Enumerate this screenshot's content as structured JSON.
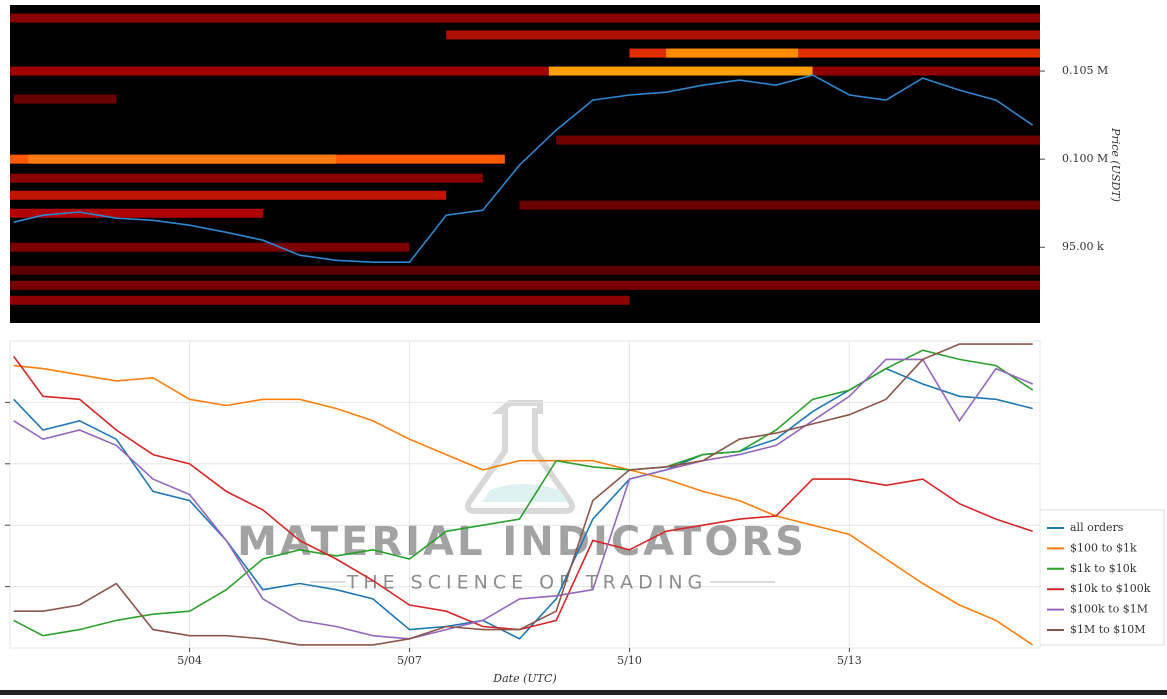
{
  "chart_data": [
    {
      "type": "heatmap",
      "ylabel": "Price (USDT)",
      "background": "#000000",
      "xlim": [
        1.55,
        15.6
      ],
      "ylim": [
        90700,
        108750
      ],
      "yticks": [
        {
          "value": 95000,
          "label": "95.00 k"
        },
        {
          "value": 100000,
          "label": "0.100 M"
        },
        {
          "value": 105000,
          "label": "0.105 M"
        }
      ],
      "x": [
        1.6,
        2,
        2.5,
        3,
        3.5,
        4,
        4.5,
        5,
        5.5,
        6,
        6.5,
        7,
        7.5,
        8,
        8.5,
        9,
        9.5,
        10,
        10.5,
        11,
        11.5,
        12,
        12.5,
        13,
        13.5,
        14,
        14.5,
        15,
        15.5
      ],
      "series": [
        {
          "color": "#2e86d0",
          "values": [
            96420,
            96820,
            97000,
            96650,
            96530,
            96250,
            95850,
            95400,
            94550,
            94260,
            94150,
            94150,
            96820,
            97100,
            99660,
            101650,
            103350,
            103640,
            103800,
            104200,
            104490,
            104200,
            104770,
            103640,
            103350,
            104600,
            103920,
            103350,
            101930
          ]
        }
      ],
      "bands": [
        {
          "price": 108010,
          "x0": 1.55,
          "x1": 15.6,
          "color": "#8b0000"
        },
        {
          "price": 107050,
          "x0": 7.5,
          "x1": 15.6,
          "color": "#b01000"
        },
        {
          "price": 106020,
          "x0": 10,
          "x1": 15.6,
          "color": "#e03000"
        },
        {
          "price": 106020,
          "x0": 10.5,
          "x1": 12.3,
          "color": "#ff8c00"
        },
        {
          "price": 105000,
          "x0": 1.55,
          "x1": 8.9,
          "color": "#a00000"
        },
        {
          "price": 105000,
          "x0": 8.9,
          "x1": 12.5,
          "color": "#ffa000"
        },
        {
          "price": 105000,
          "x0": 12.5,
          "x1": 15.6,
          "color": "#900000"
        },
        {
          "price": 103410,
          "x0": 1.6,
          "x1": 3,
          "color": "#6a0000"
        },
        {
          "price": 101080,
          "x0": 9,
          "x1": 15.6,
          "color": "#700000"
        },
        {
          "price": 100000,
          "x0": 1.55,
          "x1": 8.3,
          "color": "#ff5a00"
        },
        {
          "price": 100000,
          "x0": 1.8,
          "x1": 6,
          "color": "#ff7a10"
        },
        {
          "price": 98920,
          "x0": 1.55,
          "x1": 8,
          "color": "#8b0000"
        },
        {
          "price": 97950,
          "x0": 1.55,
          "x1": 7.5,
          "color": "#c01500"
        },
        {
          "price": 97390,
          "x0": 8.5,
          "x1": 15.6,
          "color": "#6a0000"
        },
        {
          "price": 96930,
          "x0": 1.55,
          "x1": 5,
          "color": "#b00000"
        },
        {
          "price": 95000,
          "x0": 1.55,
          "x1": 7,
          "color": "#7a0000"
        },
        {
          "price": 93690,
          "x0": 1.55,
          "x1": 15.6,
          "color": "#5a0000"
        },
        {
          "price": 92840,
          "x0": 1.55,
          "x1": 15.6,
          "color": "#7a0000"
        },
        {
          "price": 91990,
          "x0": 1.55,
          "x1": 10,
          "color": "#8b0000"
        }
      ]
    },
    {
      "type": "line",
      "xlabel": "Date (UTC)",
      "grid": true,
      "watermark": [
        "MATERIAL INDICATORS",
        "THE SCIENCE OF TRADING"
      ],
      "xlim": [
        1.55,
        15.6
      ],
      "ylim": [
        0,
        100
      ],
      "xticks": [
        {
          "value": 4,
          "label": "5/04"
        },
        {
          "value": 7,
          "label": "5/07"
        },
        {
          "value": 10,
          "label": "5/10"
        },
        {
          "value": 13,
          "label": "5/13"
        }
      ],
      "yticks": [
        20,
        40,
        60,
        80
      ],
      "x": [
        1.6,
        2,
        2.5,
        3,
        3.5,
        4,
        4.5,
        5,
        5.5,
        6,
        6.5,
        7,
        7.5,
        8,
        8.5,
        9,
        9.5,
        10,
        10.5,
        11,
        11.5,
        12,
        12.5,
        13,
        13.5,
        14,
        14.5,
        15,
        15.5
      ],
      "series": [
        {
          "name": "all orders",
          "color": "#1f77b4",
          "values": [
            81,
            71,
            74,
            68,
            51,
            48,
            35,
            19,
            21,
            19,
            16,
            6,
            7,
            9,
            3,
            16,
            42,
            55,
            58,
            63,
            64,
            68,
            77,
            84,
            91,
            86,
            82,
            81,
            78
          ]
        },
        {
          "name": "$100 to $1k",
          "color": "#ff7f0e",
          "values": [
            92,
            91,
            89,
            87,
            88,
            81,
            79,
            81,
            81,
            78,
            74,
            68,
            63,
            58,
            61,
            61,
            61,
            58,
            55,
            51,
            48,
            43,
            40,
            37,
            29,
            21,
            14,
            9,
            1
          ]
        },
        {
          "name": "$1k to $10k",
          "color": "#2ca02c",
          "values": [
            9,
            4,
            6,
            9,
            11,
            12,
            19,
            29,
            32,
            30,
            32,
            29,
            38,
            40,
            42,
            61,
            59,
            58,
            59,
            63,
            64,
            71,
            81,
            84,
            91,
            97,
            94,
            92,
            84
          ]
        },
        {
          "name": "$10k to $100k",
          "color": "#d62728",
          "values": [
            95,
            82,
            81,
            71,
            63,
            60,
            51,
            45,
            35,
            29,
            22,
            14,
            12,
            7,
            6,
            9,
            35,
            32,
            38,
            40,
            42,
            43,
            55,
            55,
            53,
            55,
            47,
            42,
            38
          ]
        },
        {
          "name": "$100k to $1M",
          "color": "#9467bd",
          "values": [
            74,
            68,
            71,
            66,
            55,
            50,
            35,
            16,
            9,
            7,
            4,
            3,
            6,
            9,
            16,
            17,
            19,
            55,
            58,
            61,
            63,
            66,
            74,
            82,
            94,
            94,
            74,
            91,
            86
          ]
        },
        {
          "name": "$1M to $10M",
          "color": "#8c564b",
          "values": [
            12,
            12,
            14,
            21,
            6,
            4,
            4,
            3,
            1,
            1,
            1,
            3,
            7,
            6,
            6,
            12,
            48,
            58,
            59,
            61,
            68,
            70,
            73,
            76,
            81,
            94,
            99,
            99,
            99
          ]
        }
      ]
    }
  ]
}
